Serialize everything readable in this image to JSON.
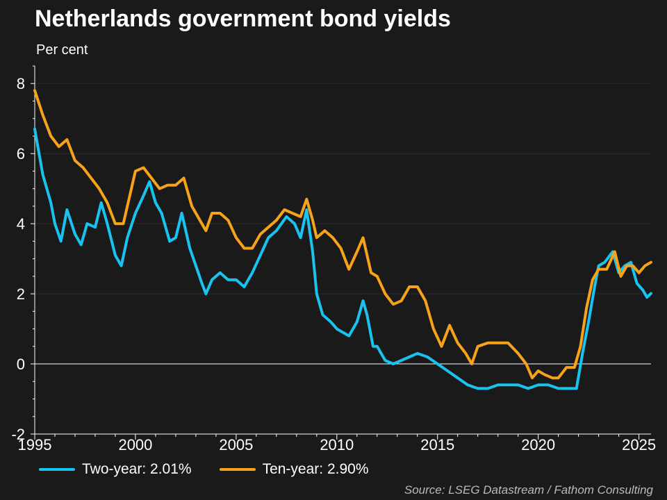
{
  "colors": {
    "background": "#1a1a1a",
    "two_year": "#19c3f0",
    "ten_year": "#f7a21b",
    "zero_line": "#ffffff",
    "grid": "#2c2c2c",
    "axis": "#ffffff"
  },
  "source": "Source: LSEG Datastream / Fathom Consulting",
  "chart_data": {
    "type": "line",
    "title": "Netherlands government bond yields",
    "subtitle": "Per cent",
    "xlabel": "",
    "ylabel": "",
    "xlim": [
      1995,
      2025.6
    ],
    "ylim": [
      -2,
      8.5
    ],
    "x_ticks": [
      1995,
      2000,
      2005,
      2010,
      2015,
      2020,
      2025
    ],
    "y_ticks": [
      -2,
      0,
      2,
      4,
      6,
      8
    ],
    "grid": true,
    "legend_position": "bottom-left",
    "series": [
      {
        "name": "Two-year",
        "legend_label": "Two-year: 2.01%",
        "points": [
          [
            1995.0,
            6.7
          ],
          [
            1995.4,
            5.4
          ],
          [
            1995.8,
            4.6
          ],
          [
            1996.0,
            4.0
          ],
          [
            1996.3,
            3.5
          ],
          [
            1996.6,
            4.4
          ],
          [
            1997.0,
            3.7
          ],
          [
            1997.3,
            3.4
          ],
          [
            1997.6,
            4.0
          ],
          [
            1998.0,
            3.9
          ],
          [
            1998.3,
            4.6
          ],
          [
            1998.6,
            4.0
          ],
          [
            1999.0,
            3.1
          ],
          [
            1999.3,
            2.8
          ],
          [
            1999.6,
            3.6
          ],
          [
            2000.0,
            4.3
          ],
          [
            2000.4,
            4.8
          ],
          [
            2000.7,
            5.2
          ],
          [
            2001.0,
            4.6
          ],
          [
            2001.3,
            4.3
          ],
          [
            2001.7,
            3.5
          ],
          [
            2002.0,
            3.6
          ],
          [
            2002.3,
            4.3
          ],
          [
            2002.7,
            3.3
          ],
          [
            2003.0,
            2.8
          ],
          [
            2003.3,
            2.3
          ],
          [
            2003.5,
            2.0
          ],
          [
            2003.8,
            2.4
          ],
          [
            2004.2,
            2.6
          ],
          [
            2004.6,
            2.4
          ],
          [
            2005.0,
            2.4
          ],
          [
            2005.4,
            2.2
          ],
          [
            2005.8,
            2.6
          ],
          [
            2006.2,
            3.1
          ],
          [
            2006.6,
            3.6
          ],
          [
            2007.0,
            3.8
          ],
          [
            2007.5,
            4.2
          ],
          [
            2007.9,
            4.0
          ],
          [
            2008.2,
            3.6
          ],
          [
            2008.5,
            4.4
          ],
          [
            2008.8,
            3.2
          ],
          [
            2009.0,
            2.0
          ],
          [
            2009.3,
            1.4
          ],
          [
            2009.7,
            1.2
          ],
          [
            2010.0,
            1.0
          ],
          [
            2010.3,
            0.9
          ],
          [
            2010.6,
            0.8
          ],
          [
            2011.0,
            1.2
          ],
          [
            2011.3,
            1.8
          ],
          [
            2011.5,
            1.4
          ],
          [
            2011.8,
            0.5
          ],
          [
            2012.0,
            0.5
          ],
          [
            2012.4,
            0.1
          ],
          [
            2012.8,
            0.0
          ],
          [
            2013.2,
            0.1
          ],
          [
            2013.6,
            0.2
          ],
          [
            2014.0,
            0.3
          ],
          [
            2014.5,
            0.2
          ],
          [
            2015.0,
            0.0
          ],
          [
            2015.5,
            -0.2
          ],
          [
            2016.0,
            -0.4
          ],
          [
            2016.5,
            -0.6
          ],
          [
            2017.0,
            -0.7
          ],
          [
            2017.5,
            -0.7
          ],
          [
            2018.0,
            -0.6
          ],
          [
            2018.5,
            -0.6
          ],
          [
            2019.0,
            -0.6
          ],
          [
            2019.5,
            -0.7
          ],
          [
            2020.0,
            -0.6
          ],
          [
            2020.5,
            -0.6
          ],
          [
            2021.0,
            -0.7
          ],
          [
            2021.5,
            -0.7
          ],
          [
            2021.9,
            -0.7
          ],
          [
            2022.2,
            0.3
          ],
          [
            2022.5,
            1.2
          ],
          [
            2022.8,
            2.2
          ],
          [
            2023.0,
            2.8
          ],
          [
            2023.3,
            2.9
          ],
          [
            2023.7,
            3.2
          ],
          [
            2024.0,
            2.6
          ],
          [
            2024.3,
            2.8
          ],
          [
            2024.6,
            2.9
          ],
          [
            2024.9,
            2.3
          ],
          [
            2025.2,
            2.1
          ],
          [
            2025.4,
            1.9
          ],
          [
            2025.6,
            2.01
          ]
        ]
      },
      {
        "name": "Ten-year",
        "legend_label": "Ten-year: 2.90%",
        "points": [
          [
            1995.0,
            7.8
          ],
          [
            1995.4,
            7.1
          ],
          [
            1995.8,
            6.5
          ],
          [
            1996.2,
            6.2
          ],
          [
            1996.6,
            6.4
          ],
          [
            1997.0,
            5.8
          ],
          [
            1997.4,
            5.6
          ],
          [
            1997.8,
            5.3
          ],
          [
            1998.2,
            5.0
          ],
          [
            1998.6,
            4.6
          ],
          [
            1999.0,
            4.0
          ],
          [
            1999.4,
            4.0
          ],
          [
            1999.8,
            5.0
          ],
          [
            2000.0,
            5.5
          ],
          [
            2000.4,
            5.6
          ],
          [
            2000.8,
            5.3
          ],
          [
            2001.2,
            5.0
          ],
          [
            2001.6,
            5.1
          ],
          [
            2002.0,
            5.1
          ],
          [
            2002.4,
            5.3
          ],
          [
            2002.8,
            4.5
          ],
          [
            2003.2,
            4.1
          ],
          [
            2003.5,
            3.8
          ],
          [
            2003.8,
            4.3
          ],
          [
            2004.2,
            4.3
          ],
          [
            2004.6,
            4.1
          ],
          [
            2005.0,
            3.6
          ],
          [
            2005.4,
            3.3
          ],
          [
            2005.8,
            3.3
          ],
          [
            2006.2,
            3.7
          ],
          [
            2006.6,
            3.9
          ],
          [
            2007.0,
            4.1
          ],
          [
            2007.4,
            4.4
          ],
          [
            2007.8,
            4.3
          ],
          [
            2008.2,
            4.2
          ],
          [
            2008.5,
            4.7
          ],
          [
            2008.8,
            4.1
          ],
          [
            2009.0,
            3.6
          ],
          [
            2009.4,
            3.8
          ],
          [
            2009.8,
            3.6
          ],
          [
            2010.2,
            3.3
          ],
          [
            2010.6,
            2.7
          ],
          [
            2011.0,
            3.2
          ],
          [
            2011.3,
            3.6
          ],
          [
            2011.7,
            2.6
          ],
          [
            2012.0,
            2.5
          ],
          [
            2012.4,
            2.0
          ],
          [
            2012.8,
            1.7
          ],
          [
            2013.2,
            1.8
          ],
          [
            2013.6,
            2.2
          ],
          [
            2014.0,
            2.2
          ],
          [
            2014.4,
            1.8
          ],
          [
            2014.8,
            1.0
          ],
          [
            2015.2,
            0.5
          ],
          [
            2015.6,
            1.1
          ],
          [
            2016.0,
            0.6
          ],
          [
            2016.4,
            0.3
          ],
          [
            2016.7,
            0.0
          ],
          [
            2017.0,
            0.5
          ],
          [
            2017.5,
            0.6
          ],
          [
            2018.0,
            0.6
          ],
          [
            2018.5,
            0.6
          ],
          [
            2019.0,
            0.3
          ],
          [
            2019.4,
            0.0
          ],
          [
            2019.7,
            -0.4
          ],
          [
            2020.0,
            -0.2
          ],
          [
            2020.3,
            -0.3
          ],
          [
            2020.7,
            -0.4
          ],
          [
            2021.0,
            -0.4
          ],
          [
            2021.4,
            -0.1
          ],
          [
            2021.8,
            -0.1
          ],
          [
            2022.1,
            0.5
          ],
          [
            2022.4,
            1.6
          ],
          [
            2022.7,
            2.4
          ],
          [
            2023.0,
            2.7
          ],
          [
            2023.4,
            2.7
          ],
          [
            2023.8,
            3.2
          ],
          [
            2024.1,
            2.5
          ],
          [
            2024.4,
            2.8
          ],
          [
            2024.7,
            2.8
          ],
          [
            2025.0,
            2.6
          ],
          [
            2025.3,
            2.8
          ],
          [
            2025.6,
            2.9
          ]
        ]
      }
    ]
  }
}
